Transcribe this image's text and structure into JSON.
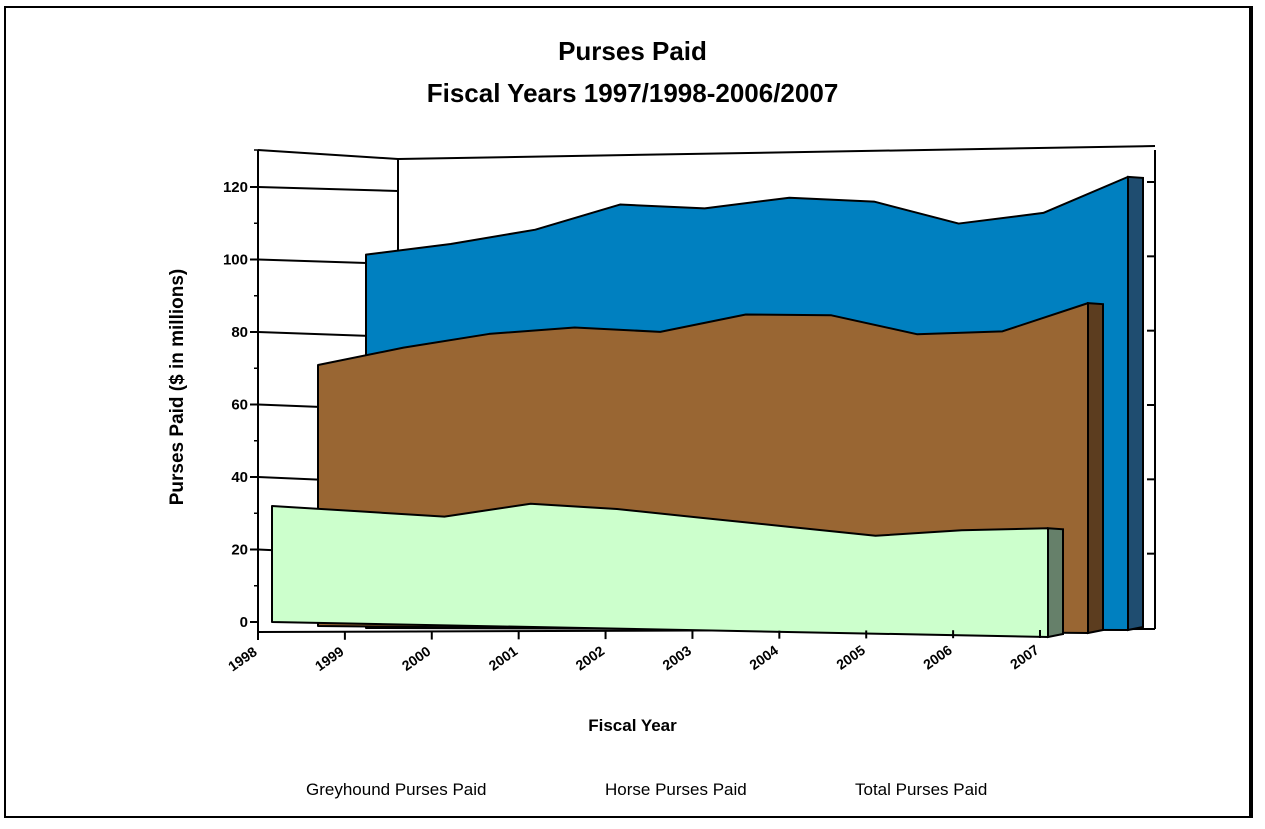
{
  "chart_data": {
    "type": "area",
    "title": "Purses Paid",
    "subtitle": "Fiscal Years 1997/1998-2006/2007",
    "xlabel": "Fiscal Year",
    "ylabel": "Purses Paid ($ in millions)",
    "categories": [
      "1998",
      "1999",
      "2000",
      "2001",
      "2002",
      "2003",
      "2004",
      "2005",
      "2006",
      "2007"
    ],
    "ylim": [
      0,
      120
    ],
    "yticks": [
      "0",
      "20",
      "40",
      "60",
      "80",
      "100",
      "120"
    ],
    "three_d": true,
    "grid": false,
    "legend_position": "bottom",
    "series": [
      {
        "name": "Greyhound Purses Paid",
        "color": "#ccffcc",
        "side_color": "#66806a",
        "values": [
          32,
          31,
          30,
          34,
          33,
          31,
          29,
          27,
          29,
          30
        ]
      },
      {
        "name": "Horse Purses Paid",
        "color": "#996633",
        "side_color": "#5c3d1f",
        "values": [
          72,
          77,
          81,
          83,
          82,
          87,
          87,
          82,
          83,
          91
        ]
      },
      {
        "name": "Total Purses Paid",
        "color": "#0080c0",
        "side_color": "#1f4d70",
        "values": [
          103,
          106,
          110,
          117,
          116,
          119,
          118,
          112,
          115,
          125
        ]
      }
    ]
  }
}
